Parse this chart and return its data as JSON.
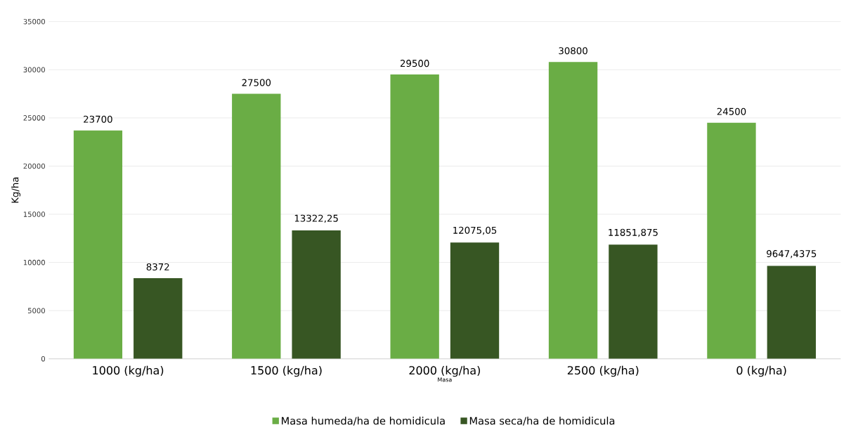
{
  "chart_data": {
    "type": "bar",
    "xlabel": "Masa",
    "ylabel": "Kg/ha",
    "categories": [
      "1000 (kg/ha)",
      "1500 (kg/ha)",
      "2000 (kg/ha)",
      "2500 (kg/ha)",
      "0 (kg/ha)"
    ],
    "series": [
      {
        "name": "Masa humeda/ha de homidicula",
        "color": "#6aad45",
        "values": [
          23700,
          27500,
          29500,
          30800,
          24500
        ],
        "value_labels": [
          "23700",
          "27500",
          "29500",
          "30800",
          "24500"
        ]
      },
      {
        "name": "Masa seca/ha de homidicula",
        "color": "#375623",
        "values": [
          8372,
          13322.25,
          12075.05,
          11851.875,
          9647.4375
        ],
        "value_labels": [
          "8372",
          "13322,25",
          "12075,05",
          "11851,875",
          "9647,4375"
        ]
      }
    ],
    "ylim": [
      0,
      35000
    ],
    "yticks": [
      0,
      5000,
      10000,
      15000,
      20000,
      25000,
      30000,
      35000
    ],
    "grid": "y",
    "legend": "bottom"
  }
}
